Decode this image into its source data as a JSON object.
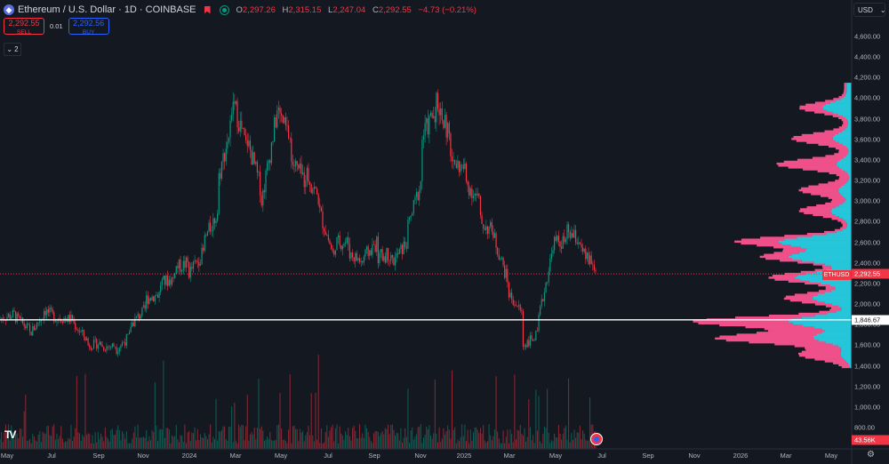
{
  "header": {
    "title": "Ethereum / U.S. Dollar · 1D · COINBASE",
    "ohlc": {
      "o_label": "O",
      "o": "2,297.26",
      "h_label": "H",
      "h": "2,315.15",
      "l_label": "L",
      "l": "2,247.04",
      "c_label": "C",
      "c": "2,292.55",
      "change": "−4.73 (−0.21%)"
    }
  },
  "trade": {
    "sell_price": "2,292.55",
    "sell_label": "SELL",
    "spread": "0.01",
    "buy_price": "2,292.56",
    "buy_label": "BUY"
  },
  "indicators_toggle": {
    "count": "2"
  },
  "currency": "USD",
  "axis": {
    "y_ticks": [
      "4,600.00",
      "4,400.00",
      "4,200.00",
      "4,000.00",
      "3,800.00",
      "3,600.00",
      "3,400.00",
      "3,200.00",
      "3,000.00",
      "2,800.00",
      "2,600.00",
      "2,400.00",
      "2,200.00",
      "2,000.00",
      "1,800.00",
      "1,600.00",
      "1,400.00",
      "1,200.00",
      "1,000.00",
      "800.00"
    ],
    "y_tick_values": [
      4600,
      4400,
      4200,
      4000,
      3800,
      3600,
      3400,
      3200,
      3000,
      2800,
      2600,
      2400,
      2200,
      2000,
      1800,
      1600,
      1400,
      1200,
      1000,
      800
    ],
    "x_ticks": [
      "May",
      "Jul",
      "Sep",
      "Nov",
      "2024",
      "Mar",
      "May",
      "Jul",
      "Sep",
      "Nov",
      "2025",
      "Mar",
      "May",
      "Jul",
      "Sep",
      "Nov",
      "2026",
      "Mar",
      "May"
    ]
  },
  "price_tag": {
    "symbol": "ETHUSD",
    "value": "2,292.55",
    "raw": 2292.55
  },
  "crosshair": {
    "value": "1,846.67",
    "raw": 1846.67
  },
  "volume_tag": "43.56K",
  "colors": {
    "up": "#089981",
    "down": "#f23645",
    "background": "#141821",
    "vp_up": "#26c6da",
    "vp_down": "#f0508a"
  },
  "chart_data": {
    "type": "candlestick",
    "ylim": [
      720,
      4750
    ],
    "price_waypoints": [
      [
        1850,
        1860
      ],
      [
        1900,
        1880
      ],
      [
        1750,
        1700
      ],
      [
        1900,
        1950
      ],
      [
        1850,
        1870
      ],
      [
        1850,
        1820
      ],
      [
        1650,
        1600
      ],
      [
        1620,
        1580
      ],
      [
        1600,
        1560
      ],
      [
        1700,
        1800
      ],
      [
        1950,
        2050
      ],
      [
        2100,
        2200
      ],
      [
        2250,
        2350
      ],
      [
        2400,
        2300
      ],
      [
        2500,
        2600
      ],
      [
        2900,
        3200
      ],
      [
        3800,
        4000
      ],
      [
        3500,
        3600
      ],
      [
        3100,
        3000
      ],
      [
        3800,
        3900
      ],
      [
        3600,
        3400
      ],
      [
        3200,
        3300
      ],
      [
        3000,
        2900
      ],
      [
        2450,
        2600
      ],
      [
        2600,
        2500
      ],
      [
        2400,
        2450
      ],
      [
        2600,
        2450
      ],
      [
        2500,
        2400
      ],
      [
        2600,
        2700
      ],
      [
        3200,
        3600
      ],
      [
        3900,
        4000
      ],
      [
        3600,
        3400
      ],
      [
        3300,
        3200
      ],
      [
        3000,
        2800
      ],
      [
        2700,
        2650
      ],
      [
        2200,
        2100
      ],
      [
        1900,
        1600
      ],
      [
        1700,
        1800
      ],
      [
        2500,
        2600
      ],
      [
        2600,
        2700
      ],
      [
        2600,
        2500
      ],
      [
        2350,
        2292
      ]
    ],
    "volume_profile": "visible-range, ~ peaks at 1,800 and 1,650, 2,600, 3,350"
  }
}
